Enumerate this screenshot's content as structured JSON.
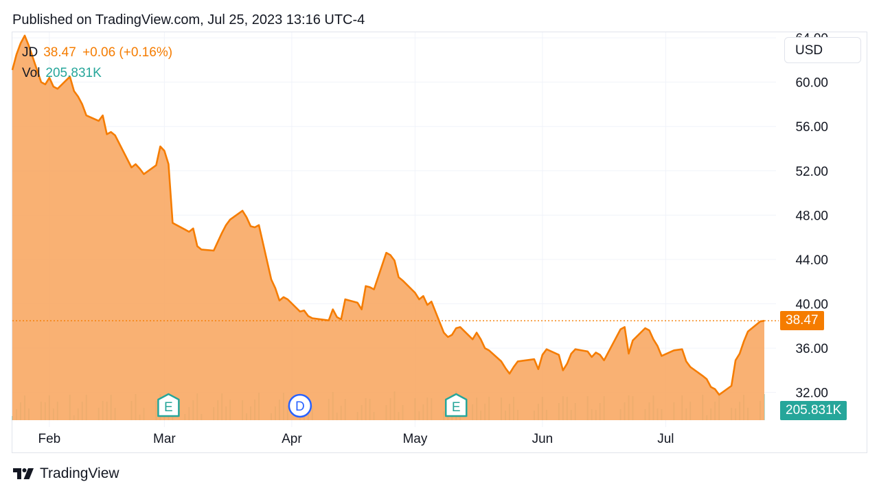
{
  "header": {
    "published": "Published on TradingView.com, Jul 25, 2023 13:16 UTC-4"
  },
  "legend": {
    "symbol": "JD",
    "price": "38.47",
    "change": "+0.06 (+0.16%)",
    "vol_label": "Vol",
    "vol_value": "205.831K"
  },
  "currency": "USD",
  "price_tag": "38.47",
  "vol_tag": "205.831K",
  "events": [
    {
      "label": "E",
      "date": "2023-03-02",
      "kind": "earnings"
    },
    {
      "label": "D",
      "date": "2023-04-03",
      "kind": "dividend"
    },
    {
      "label": "E",
      "date": "2023-05-11",
      "kind": "earnings"
    }
  ],
  "footer": {
    "brand": "TradingView"
  },
  "colors": {
    "line": "#f57c00",
    "area": "#f8a35a",
    "volume": "#26a69a",
    "dividend": "#2962ff",
    "grid": "#f0f3fa",
    "earnings": "#26a69a"
  },
  "chart_data": {
    "type": "area",
    "title": "",
    "xlabel": "",
    "ylabel": "",
    "y_ticks": [
      "64.00",
      "60.00",
      "56.00",
      "52.00",
      "48.00",
      "44.00",
      "40.00",
      "36.00",
      "32.00"
    ],
    "y_tick_values": [
      64,
      60,
      56,
      52,
      48,
      44,
      40,
      36,
      32
    ],
    "ylim": [
      29.5,
      64.5
    ],
    "xlim": [
      "2023-01-23",
      "2023-07-25"
    ],
    "x_ticks": [
      {
        "label": "Feb",
        "date": "2023-02-01"
      },
      {
        "label": "Mar",
        "date": "2023-03-01"
      },
      {
        "label": "Apr",
        "date": "2023-04-01"
      },
      {
        "label": "May",
        "date": "2023-05-01"
      },
      {
        "label": "Jun",
        "date": "2023-06-01"
      },
      {
        "label": "Jul",
        "date": "2023-07-01"
      }
    ],
    "last_price": 38.47,
    "grid": true,
    "series": [
      {
        "values": [
          [
            "2023-01-23",
            61.1
          ],
          [
            "2023-01-24",
            62.5
          ],
          [
            "2023-01-25",
            63.5
          ],
          [
            "2023-01-26",
            64.2
          ],
          [
            "2023-01-27",
            63.3
          ],
          [
            "2023-01-30",
            60.0
          ],
          [
            "2023-01-31",
            59.8
          ],
          [
            "2023-02-01",
            60.4
          ],
          [
            "2023-02-02",
            59.6
          ],
          [
            "2023-02-03",
            59.4
          ],
          [
            "2023-02-06",
            60.5
          ],
          [
            "2023-02-07",
            59.2
          ],
          [
            "2023-02-08",
            58.7
          ],
          [
            "2023-02-09",
            58.0
          ],
          [
            "2023-02-10",
            57.0
          ],
          [
            "2023-02-13",
            56.5
          ],
          [
            "2023-02-14",
            57.0
          ],
          [
            "2023-02-15",
            55.3
          ],
          [
            "2023-02-16",
            55.5
          ],
          [
            "2023-02-17",
            55.2
          ],
          [
            "2023-02-21",
            52.3
          ],
          [
            "2023-02-22",
            52.6
          ],
          [
            "2023-02-23",
            52.2
          ],
          [
            "2023-02-24",
            51.7
          ],
          [
            "2023-02-27",
            52.5
          ],
          [
            "2023-02-28",
            54.2
          ],
          [
            "2023-03-01",
            53.8
          ],
          [
            "2023-03-02",
            52.6
          ],
          [
            "2023-03-03",
            47.3
          ],
          [
            "2023-03-06",
            46.7
          ],
          [
            "2023-03-07",
            46.5
          ],
          [
            "2023-03-08",
            46.8
          ],
          [
            "2023-03-09",
            45.2
          ],
          [
            "2023-03-10",
            44.9
          ],
          [
            "2023-03-13",
            44.8
          ],
          [
            "2023-03-14",
            45.6
          ],
          [
            "2023-03-15",
            46.4
          ],
          [
            "2023-03-16",
            47.1
          ],
          [
            "2023-03-17",
            47.6
          ],
          [
            "2023-03-20",
            48.4
          ],
          [
            "2023-03-21",
            47.8
          ],
          [
            "2023-03-22",
            47.0
          ],
          [
            "2023-03-23",
            46.9
          ],
          [
            "2023-03-24",
            47.1
          ],
          [
            "2023-03-27",
            42.2
          ],
          [
            "2023-03-28",
            41.4
          ],
          [
            "2023-03-29",
            40.3
          ],
          [
            "2023-03-30",
            40.6
          ],
          [
            "2023-03-31",
            40.4
          ],
          [
            "2023-04-03",
            39.3
          ],
          [
            "2023-04-04",
            39.4
          ],
          [
            "2023-04-05",
            38.9
          ],
          [
            "2023-04-06",
            38.7
          ],
          [
            "2023-04-10",
            38.5
          ],
          [
            "2023-04-11",
            39.5
          ],
          [
            "2023-04-12",
            38.8
          ],
          [
            "2023-04-13",
            38.6
          ],
          [
            "2023-04-14",
            40.4
          ],
          [
            "2023-04-17",
            40.1
          ],
          [
            "2023-04-18",
            39.5
          ],
          [
            "2023-04-19",
            41.6
          ],
          [
            "2023-04-20",
            41.5
          ],
          [
            "2023-04-21",
            41.3
          ],
          [
            "2023-04-24",
            44.6
          ],
          [
            "2023-04-25",
            44.4
          ],
          [
            "2023-04-26",
            43.9
          ],
          [
            "2023-04-27",
            42.4
          ],
          [
            "2023-04-28",
            42.1
          ],
          [
            "2023-05-01",
            41.0
          ],
          [
            "2023-05-02",
            40.4
          ],
          [
            "2023-05-03",
            40.7
          ],
          [
            "2023-05-04",
            39.9
          ],
          [
            "2023-05-05",
            40.2
          ],
          [
            "2023-05-08",
            37.4
          ],
          [
            "2023-05-09",
            37.0
          ],
          [
            "2023-05-10",
            37.2
          ],
          [
            "2023-05-11",
            37.8
          ],
          [
            "2023-05-12",
            37.9
          ],
          [
            "2023-05-15",
            36.8
          ],
          [
            "2023-05-16",
            37.4
          ],
          [
            "2023-05-17",
            36.8
          ],
          [
            "2023-05-18",
            36.0
          ],
          [
            "2023-05-19",
            35.8
          ],
          [
            "2023-05-22",
            34.8
          ],
          [
            "2023-05-23",
            34.2
          ],
          [
            "2023-05-24",
            33.7
          ],
          [
            "2023-05-25",
            34.3
          ],
          [
            "2023-05-26",
            34.8
          ],
          [
            "2023-05-30",
            35.0
          ],
          [
            "2023-05-31",
            34.1
          ],
          [
            "2023-06-01",
            35.4
          ],
          [
            "2023-06-02",
            35.9
          ],
          [
            "2023-06-05",
            35.4
          ],
          [
            "2023-06-06",
            34.0
          ],
          [
            "2023-06-07",
            34.6
          ],
          [
            "2023-06-08",
            35.5
          ],
          [
            "2023-06-09",
            35.9
          ],
          [
            "2023-06-12",
            35.7
          ],
          [
            "2023-06-13",
            35.2
          ],
          [
            "2023-06-14",
            35.6
          ],
          [
            "2023-06-15",
            35.4
          ],
          [
            "2023-06-16",
            34.9
          ],
          [
            "2023-06-20",
            37.7
          ],
          [
            "2023-06-21",
            37.9
          ],
          [
            "2023-06-22",
            35.5
          ],
          [
            "2023-06-23",
            36.7
          ],
          [
            "2023-06-26",
            37.8
          ],
          [
            "2023-06-27",
            37.6
          ],
          [
            "2023-06-28",
            36.8
          ],
          [
            "2023-06-29",
            36.2
          ],
          [
            "2023-06-30",
            35.3
          ],
          [
            "2023-07-03",
            35.8
          ],
          [
            "2023-07-05",
            35.9
          ],
          [
            "2023-07-06",
            34.8
          ],
          [
            "2023-07-07",
            34.3
          ],
          [
            "2023-07-10",
            33.5
          ],
          [
            "2023-07-11",
            33.2
          ],
          [
            "2023-07-12",
            32.5
          ],
          [
            "2023-07-13",
            32.3
          ],
          [
            "2023-07-14",
            31.8
          ],
          [
            "2023-07-17",
            32.6
          ],
          [
            "2023-07-18",
            34.9
          ],
          [
            "2023-07-19",
            35.5
          ],
          [
            "2023-07-20",
            36.6
          ],
          [
            "2023-07-21",
            37.5
          ],
          [
            "2023-07-24",
            38.41
          ],
          [
            "2023-07-25",
            38.47
          ]
        ]
      }
    ]
  }
}
